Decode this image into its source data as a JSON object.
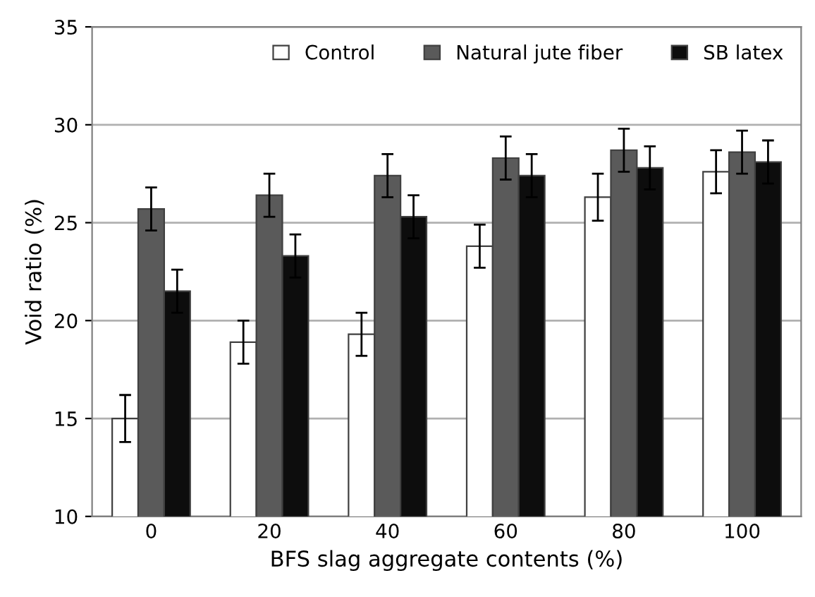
{
  "chart_data": {
    "type": "bar",
    "xlabel": "BFS slag aggregate contents (%)",
    "ylabel": "Void ratio (%)",
    "categories": [
      "0",
      "20",
      "40",
      "60",
      "80",
      "100"
    ],
    "series": [
      {
        "name": "Control",
        "color": "#ffffff",
        "values": [
          15.0,
          18.9,
          19.3,
          23.8,
          26.3,
          27.6
        ],
        "errors": [
          1.2,
          1.1,
          1.1,
          1.1,
          1.2,
          1.1
        ]
      },
      {
        "name": "Natural jute fiber",
        "color": "#5a5a5a",
        "values": [
          25.7,
          26.4,
          27.4,
          28.3,
          28.7,
          28.6
        ],
        "errors": [
          1.1,
          1.1,
          1.1,
          1.1,
          1.1,
          1.1
        ]
      },
      {
        "name": "SB latex",
        "color": "#0d0d0d",
        "values": [
          21.5,
          23.3,
          25.3,
          27.4,
          27.8,
          28.1
        ],
        "errors": [
          1.1,
          1.1,
          1.1,
          1.1,
          1.1,
          1.1
        ]
      }
    ],
    "ylim": [
      10,
      35
    ],
    "yticks": [
      10,
      15,
      20,
      25,
      30,
      35
    ],
    "grid": "y",
    "legend": "top right"
  }
}
